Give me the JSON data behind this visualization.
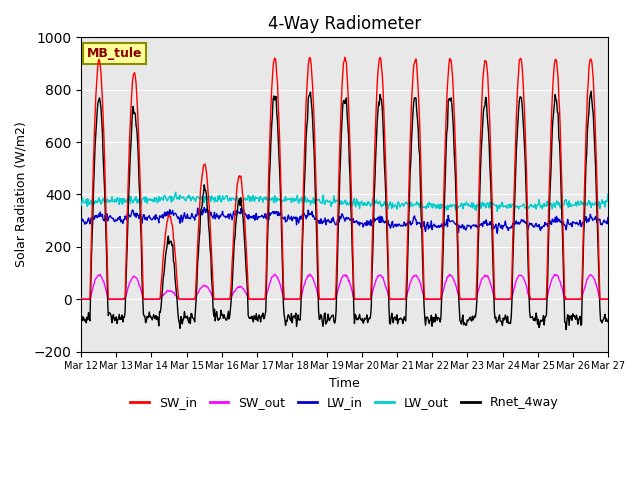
{
  "title": "4-Way Radiometer",
  "xlabel": "Time",
  "ylabel": "Solar Radiation (W/m2)",
  "ylim": [
    -200,
    1000
  ],
  "xlim": [
    0,
    360
  ],
  "station_label": "MB_tule",
  "legend_entries": [
    "SW_in",
    "SW_out",
    "LW_in",
    "LW_out",
    "Rnet_4way"
  ],
  "line_colors": [
    "#ff0000",
    "#ff00ff",
    "#0000cc",
    "#00cccc",
    "#000000"
  ],
  "background_color": "#e8e8e8",
  "x_tick_labels": [
    "Mar 12",
    "Mar 13",
    "Mar 14",
    "Mar 15",
    "Mar 16",
    "Mar 17",
    "Mar 18",
    "Mar 19",
    "Mar 20",
    "Mar 21",
    "Mar 22",
    "Mar 23",
    "Mar 24",
    "Mar 25",
    "Mar 26",
    "Mar 27"
  ],
  "n_days": 15,
  "hours_per_day": 24,
  "dt_hours": 0.5
}
